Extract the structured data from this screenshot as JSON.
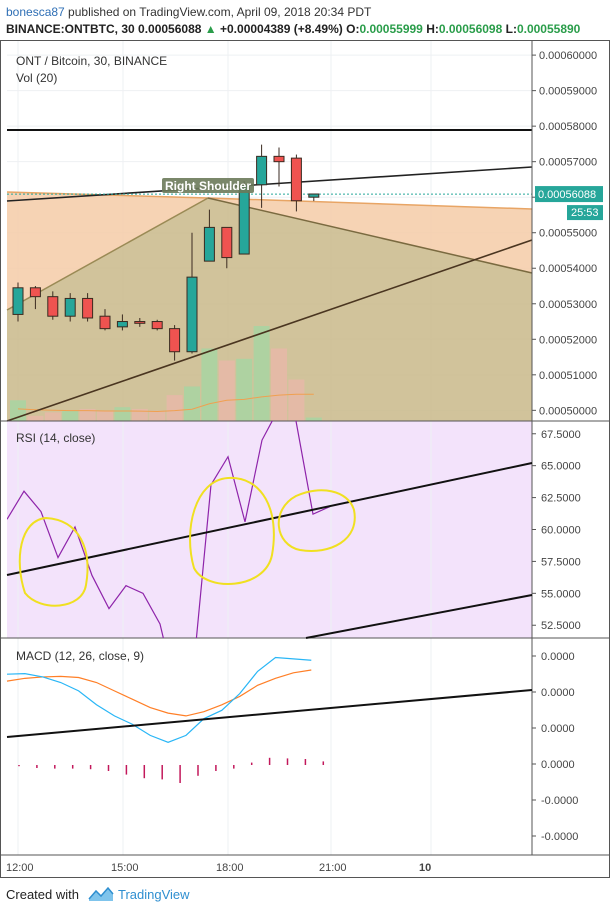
{
  "header": {
    "author": "bonesca87",
    "published_text": " published on TradingView.com, April 09, 2018 20:34 PDT",
    "symbol": "BINANCE:ONTBTC, 30",
    "open_price": "0.00056088",
    "change": "+0.00004389 (+8.49%)",
    "o_label": "O:",
    "o_value": "0.00055999",
    "h_label": "H:",
    "h_value": "0.00056098",
    "l_label": "L:",
    "l_value": "0.00055890"
  },
  "panes": {
    "price_title": "ONT / Bitcoin, 30, BINANCE",
    "vol_title": "Vol (20)",
    "rsi_title": "RSI (14, close)",
    "macd_title": "MACD (12, 26, close, 9)",
    "pattern_label": "Right Shoulder",
    "last_price_tag": "0.00056088",
    "countdown_tag": "25:53"
  },
  "footer": {
    "created_with": "Created with",
    "brand": "TradingView"
  },
  "colors": {
    "up": "#26a69a",
    "down": "#ef5350",
    "candle_border": "#3a2a20",
    "pattern_fill": "#f5cba7",
    "rsi_bg": "#f3e3fb",
    "rsi_line": "#8e24aa",
    "macd_line": "#29b6f6",
    "signal_line": "#ff7f27",
    "highlight_circle": "#f0e020",
    "volume_up": "#a8d5a2",
    "volume_down": "#e8b8a8"
  },
  "chart_data": [
    {
      "type": "candlestick",
      "title": "ONT / Bitcoin, 30, BINANCE",
      "x_ticks": [
        "12:00",
        "15:00",
        "18:00",
        "21:00",
        "10"
      ],
      "y_ticks": [
        "0.00060000",
        "0.00059000",
        "0.00058000",
        "0.00057000",
        "0.00056000",
        "0.00055000",
        "0.00054000",
        "0.00053000",
        "0.00052000",
        "0.00051000",
        "0.00050000"
      ],
      "ylim": [
        0.000497,
        0.000602
      ],
      "candles": [
        {
          "o": 0.000527,
          "h": 0.000536,
          "l": 0.000525,
          "c": 0.0005345
        },
        {
          "o": 0.0005345,
          "h": 0.000535,
          "l": 0.0005285,
          "c": 0.000532
        },
        {
          "o": 0.000532,
          "h": 0.0005335,
          "l": 0.0005255,
          "c": 0.0005265
        },
        {
          "o": 0.0005265,
          "h": 0.000533,
          "l": 0.000525,
          "c": 0.0005315
        },
        {
          "o": 0.0005315,
          "h": 0.000533,
          "l": 0.000525,
          "c": 0.000526
        },
        {
          "o": 0.0005265,
          "h": 0.0005285,
          "l": 0.0005225,
          "c": 0.000523
        },
        {
          "o": 0.0005235,
          "h": 0.000527,
          "l": 0.0005225,
          "c": 0.000525
        },
        {
          "o": 0.000525,
          "h": 0.000526,
          "l": 0.0005235,
          "c": 0.0005245
        },
        {
          "o": 0.000525,
          "h": 0.0005255,
          "l": 0.0005225,
          "c": 0.000523
        },
        {
          "o": 0.000523,
          "h": 0.000524,
          "l": 0.000514,
          "c": 0.0005165
        },
        {
          "o": 0.0005165,
          "h": 0.00055,
          "l": 0.000516,
          "c": 0.0005375
        },
        {
          "o": 0.000542,
          "h": 0.0005565,
          "l": 0.000542,
          "c": 0.0005515
        },
        {
          "o": 0.0005515,
          "h": 0.0005515,
          "l": 0.00054,
          "c": 0.000543
        },
        {
          "o": 0.000544,
          "h": 0.0005645,
          "l": 0.000544,
          "c": 0.0005635
        },
        {
          "o": 0.0005635,
          "h": 0.0005748,
          "l": 0.000557,
          "c": 0.0005715
        },
        {
          "o": 0.0005715,
          "h": 0.000574,
          "l": 0.000563,
          "c": 0.00057
        },
        {
          "o": 0.000571,
          "h": 0.000572,
          "l": 0.000556,
          "c": 0.000559
        },
        {
          "o": 0.00056,
          "h": 0.000561,
          "l": 0.0005589,
          "c": 0.0005609
        }
      ],
      "volume": [
        0.12,
        0.03,
        0.05,
        0.06,
        0.07,
        0.06,
        0.08,
        0.07,
        0.06,
        0.15,
        0.2,
        0.42,
        0.35,
        0.36,
        0.55,
        0.42,
        0.24,
        0.02
      ]
    },
    {
      "type": "line",
      "title": "RSI (14, close)",
      "y_ticks": [
        "67.5000",
        "65.0000",
        "62.5000",
        "60.0000",
        "57.5000",
        "55.0000",
        "52.5000"
      ],
      "ylim": [
        51.5,
        68.5
      ],
      "values": [
        60.8,
        63.0,
        61.4,
        57.8,
        60.2,
        56.4,
        53.8,
        55.6,
        55.0,
        52.6,
        47.0,
        49.5,
        63.5,
        65.7,
        60.6,
        67.0,
        69.5,
        68.5,
        61.2,
        61.8
      ]
    },
    {
      "type": "line",
      "title": "MACD (12, 26, close, 9)",
      "y_ticks": [
        "0.0000",
        "0.0000",
        "0.0000",
        "0.0000",
        "-0.0000",
        "-0.0000"
      ],
      "ylim": [
        -5.6,
        2.2
      ],
      "series": [
        {
          "values": [
            0.9,
            0.92,
            0.8,
            0.6,
            0.3,
            -0.2,
            -0.6,
            -0.9,
            -1.3,
            -1.55,
            -1.3,
            -0.7,
            -0.4,
            0.2,
            1.0,
            1.5,
            1.45,
            1.4
          ]
        },
        {
          "values": [
            0.65,
            0.75,
            0.8,
            0.82,
            0.78,
            0.6,
            0.3,
            0.0,
            -0.3,
            -0.5,
            -0.6,
            -0.45,
            -0.2,
            0.1,
            0.5,
            0.75,
            0.95,
            1.05
          ]
        }
      ],
      "histogram": [
        -0.1,
        -0.25,
        -0.3,
        -0.3,
        -0.35,
        -0.5,
        -0.8,
        -1.1,
        -1.2,
        -1.5,
        -0.9,
        -0.5,
        -0.3,
        0.2,
        0.6,
        0.55,
        0.5,
        0.3
      ]
    }
  ]
}
